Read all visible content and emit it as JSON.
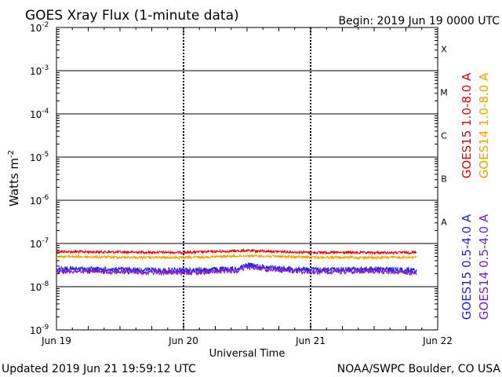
{
  "header": {
    "title": "GOES Xray Flux (1-minute data)",
    "begin": "Begin:  2019 Jun 19 0000 UTC"
  },
  "footer": {
    "updated": "Updated 2019 Jun 21 19:59:12 UTC",
    "credit": "NOAA/SWPC Boulder, CO USA"
  },
  "chart_data": {
    "type": "line",
    "title": "GOES Xray Flux (1-minute data)",
    "xlabel": "Universal Time",
    "ylabel": "Watts m",
    "ylabel_sup": "-2",
    "yscale": "log",
    "ylim": [
      1e-09,
      0.01
    ],
    "xlim": [
      "2019-06-19 00:00",
      "2019-06-22 00:00"
    ],
    "x_ticks": [
      "Jun 19",
      "Jun 20",
      "Jun 21",
      "Jun 22"
    ],
    "y_ticks": [
      {
        "base": "10",
        "exp": "-2"
      },
      {
        "base": "10",
        "exp": "-3"
      },
      {
        "base": "10",
        "exp": "-4"
      },
      {
        "base": "10",
        "exp": "-5"
      },
      {
        "base": "10",
        "exp": "-6"
      },
      {
        "base": "10",
        "exp": "-7"
      },
      {
        "base": "10",
        "exp": "-8"
      },
      {
        "base": "10",
        "exp": "-9"
      }
    ],
    "flare_classes": [
      "X",
      "M",
      "C",
      "B",
      "A"
    ],
    "grid": true,
    "legend_right": [
      {
        "label": "GOES15 1.0-8.0 A",
        "color": "#dd0000"
      },
      {
        "label": "GOES14 1.0-8.0 A",
        "color": "#f0a000"
      },
      {
        "label": "GOES15 0.5-4.0 A",
        "color": "#2222dd"
      },
      {
        "label": "GOES14 0.5-4.0 A",
        "color": "#7a1fc0"
      }
    ],
    "series": [
      {
        "name": "GOES15 1.0-8.0 A",
        "color": "#dd0000",
        "x": [
          "2019-06-19 00:00",
          "2019-06-19 12:00",
          "2019-06-20 00:00",
          "2019-06-20 12:00",
          "2019-06-21 00:00",
          "2019-06-21 12:00",
          "2019-06-21 20:00"
        ],
        "values": [
          6.5e-08,
          6.3e-08,
          6.2e-08,
          6.8e-08,
          6.2e-08,
          6.1e-08,
          6.2e-08
        ]
      },
      {
        "name": "GOES14 1.0-8.0 A",
        "color": "#f0a000",
        "x": [
          "2019-06-19 00:00",
          "2019-06-19 12:00",
          "2019-06-20 00:00",
          "2019-06-20 12:00",
          "2019-06-21 00:00",
          "2019-06-21 12:00",
          "2019-06-21 20:00"
        ],
        "values": [
          5e-08,
          4.8e-08,
          4.7e-08,
          5.2e-08,
          4.8e-08,
          4.7e-08,
          4.8e-08
        ]
      },
      {
        "name": "GOES15 0.5-4.0 A",
        "color": "#2222dd",
        "x": [
          "2019-06-19 00:00",
          "2019-06-19 12:00",
          "2019-06-20 00:00",
          "2019-06-20 10:00",
          "2019-06-20 12:00",
          "2019-06-20 16:00",
          "2019-06-21 00:00",
          "2019-06-21 12:00",
          "2019-06-21 20:00"
        ],
        "values": [
          2.6e-08,
          2.5e-08,
          2.4e-08,
          2.6e-08,
          3.2e-08,
          2.8e-08,
          2.5e-08,
          2.6e-08,
          2.4e-08
        ]
      },
      {
        "name": "GOES14 0.5-4.0 A",
        "color": "#7a1fc0",
        "x": [
          "2019-06-19 00:00",
          "2019-06-19 12:00",
          "2019-06-20 00:00",
          "2019-06-20 10:00",
          "2019-06-20 12:00",
          "2019-06-20 16:00",
          "2019-06-21 00:00",
          "2019-06-21 12:00",
          "2019-06-21 20:00"
        ],
        "values": [
          2.3e-08,
          2.2e-08,
          2.1e-08,
          2.3e-08,
          2.9e-08,
          2.5e-08,
          2.2e-08,
          2.3e-08,
          2.1e-08
        ]
      }
    ]
  }
}
